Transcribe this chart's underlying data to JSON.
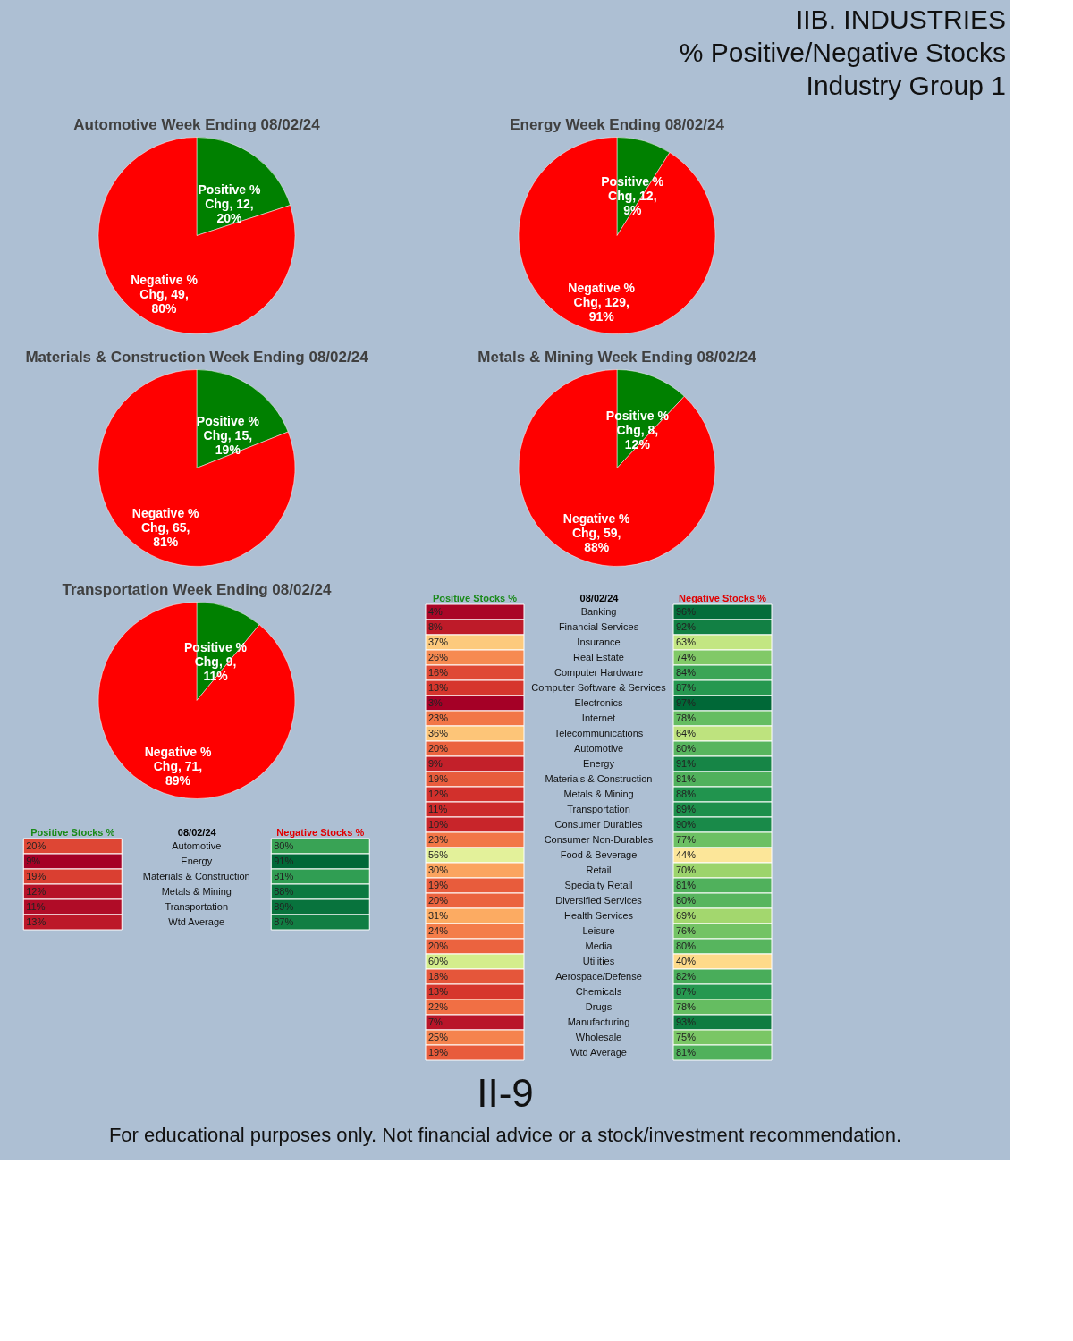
{
  "chart_data": [
    {
      "type": "other",
      "title": "IIB. INDUSTRIES",
      "annotations": [
        "% Positive/Negative Stocks",
        "Industry Group 1"
      ]
    },
    {
      "type": "pie",
      "title": "Automotive Week Ending 08/02/24",
      "categories": [
        "Positive % Chg",
        "Negative % Chg"
      ],
      "values": [
        20,
        80
      ],
      "value_labels": [
        "12, 20%",
        "49, 80%"
      ],
      "colors": [
        "#008000",
        "#ff0000"
      ],
      "legend": false
    },
    {
      "type": "pie",
      "title": "Energy Week Ending 08/02/24",
      "categories": [
        "Positive % Chg",
        "Negative % Chg"
      ],
      "values": [
        9,
        91
      ],
      "value_labels": [
        "12, 9%",
        "129, 91%"
      ],
      "colors": [
        "#008000",
        "#ff0000"
      ],
      "legend": false
    },
    {
      "type": "pie",
      "title": "Materials & Construction Week Ending 08/02/24",
      "categories": [
        "Positive % Chg",
        "Negative % Chg"
      ],
      "values": [
        19,
        81
      ],
      "value_labels": [
        "15, 19%",
        "65, 81%"
      ],
      "colors": [
        "#008000",
        "#ff0000"
      ],
      "legend": false
    },
    {
      "type": "pie",
      "title": "Metals & Mining Week Ending 08/02/24",
      "categories": [
        "Positive % Chg",
        "Negative % Chg"
      ],
      "values": [
        12,
        88
      ],
      "value_labels": [
        "8, 12%",
        "59, 88%"
      ],
      "colors": [
        "#008000",
        "#ff0000"
      ],
      "legend": false
    },
    {
      "type": "pie",
      "title": "Transportation  Week Ending 08/02/24",
      "categories": [
        "Positive % Chg",
        "Negative % Chg"
      ],
      "values": [
        11,
        89
      ],
      "value_labels": [
        "9, 11%",
        "71, 89%"
      ],
      "colors": [
        "#008000",
        "#ff0000"
      ],
      "legend": false
    },
    {
      "type": "heatmap",
      "title": "08/02/24",
      "categories": [
        "Positive Stocks %",
        "Negative Stocks %"
      ],
      "y_categories": [
        "Automotive",
        "Energy",
        "Materials & Construction",
        "Metals & Mining",
        "Transportation",
        "Wtd Average"
      ],
      "cells": [
        [
          20,
          80
        ],
        [
          9,
          91
        ],
        [
          19,
          81
        ],
        [
          12,
          88
        ],
        [
          11,
          89
        ],
        [
          13,
          87
        ]
      ],
      "cell_labels": [
        [
          "20%",
          "80%"
        ],
        [
          "9%",
          "91%"
        ],
        [
          "19%",
          "81%"
        ],
        [
          "12%",
          "88%"
        ],
        [
          "11%",
          "89%"
        ],
        [
          "13%",
          "87%"
        ]
      ]
    },
    {
      "type": "heatmap",
      "title": "08/02/24",
      "categories": [
        "Positive Stocks %",
        "Negative Stocks %"
      ],
      "y_categories": [
        "Banking",
        "Financial Services",
        "Insurance",
        "Real Estate",
        "Computer Hardware",
        "Computer Software & Services",
        "Electronics",
        "Internet",
        "Telecommunications",
        "Automotive",
        "Energy",
        "Materials & Construction",
        "Metals & Mining",
        "Transportation",
        "Consumer Durables",
        "Consumer Non-Durables",
        "Food & Beverage",
        "Retail",
        "Specialty Retail",
        "Diversified Services",
        "Health Services",
        "Leisure",
        "Media",
        "Utilities",
        "Aerospace/Defense",
        "Chemicals",
        "Drugs",
        "Manufacturing",
        "Wholesale",
        "Wtd Average"
      ],
      "cells": [
        [
          4,
          96
        ],
        [
          8,
          92
        ],
        [
          37,
          63
        ],
        [
          26,
          74
        ],
        [
          16,
          84
        ],
        [
          13,
          87
        ],
        [
          3,
          97
        ],
        [
          23,
          78
        ],
        [
          36,
          64
        ],
        [
          20,
          80
        ],
        [
          9,
          91
        ],
        [
          19,
          81
        ],
        [
          12,
          88
        ],
        [
          11,
          89
        ],
        [
          10,
          90
        ],
        [
          23,
          77
        ],
        [
          56,
          44
        ],
        [
          30,
          70
        ],
        [
          19,
          81
        ],
        [
          20,
          80
        ],
        [
          31,
          69
        ],
        [
          24,
          76
        ],
        [
          20,
          80
        ],
        [
          60,
          40
        ],
        [
          18,
          82
        ],
        [
          13,
          87
        ],
        [
          22,
          78
        ],
        [
          7,
          93
        ],
        [
          25,
          75
        ],
        [
          19,
          81
        ]
      ],
      "cell_labels": [
        [
          "4%",
          "96%"
        ],
        [
          "8%",
          "92%"
        ],
        [
          "37%",
          "63%"
        ],
        [
          "26%",
          "74%"
        ],
        [
          "16%",
          "84%"
        ],
        [
          "13%",
          "87%"
        ],
        [
          "3%",
          "97%"
        ],
        [
          "23%",
          "78%"
        ],
        [
          "36%",
          "64%"
        ],
        [
          "20%",
          "80%"
        ],
        [
          "9%",
          "91%"
        ],
        [
          "19%",
          "81%"
        ],
        [
          "12%",
          "88%"
        ],
        [
          "11%",
          "89%"
        ],
        [
          "10%",
          "90%"
        ],
        [
          "23%",
          "77%"
        ],
        [
          "56%",
          "44%"
        ],
        [
          "30%",
          "70%"
        ],
        [
          "19%",
          "81%"
        ],
        [
          "20%",
          "80%"
        ],
        [
          "31%",
          "69%"
        ],
        [
          "24%",
          "76%"
        ],
        [
          "20%",
          "80%"
        ],
        [
          "60%",
          "40%"
        ],
        [
          "18%",
          "82%"
        ],
        [
          "13%",
          "87%"
        ],
        [
          "22%",
          "78%"
        ],
        [
          "7%",
          "93%"
        ],
        [
          "25%",
          "75%"
        ],
        [
          "19%",
          "81%"
        ]
      ]
    },
    {
      "type": "other",
      "annotations": [
        "II-9",
        "For educational purposes only. Not financial advice or a stock/investment recommendation."
      ]
    }
  ]
}
